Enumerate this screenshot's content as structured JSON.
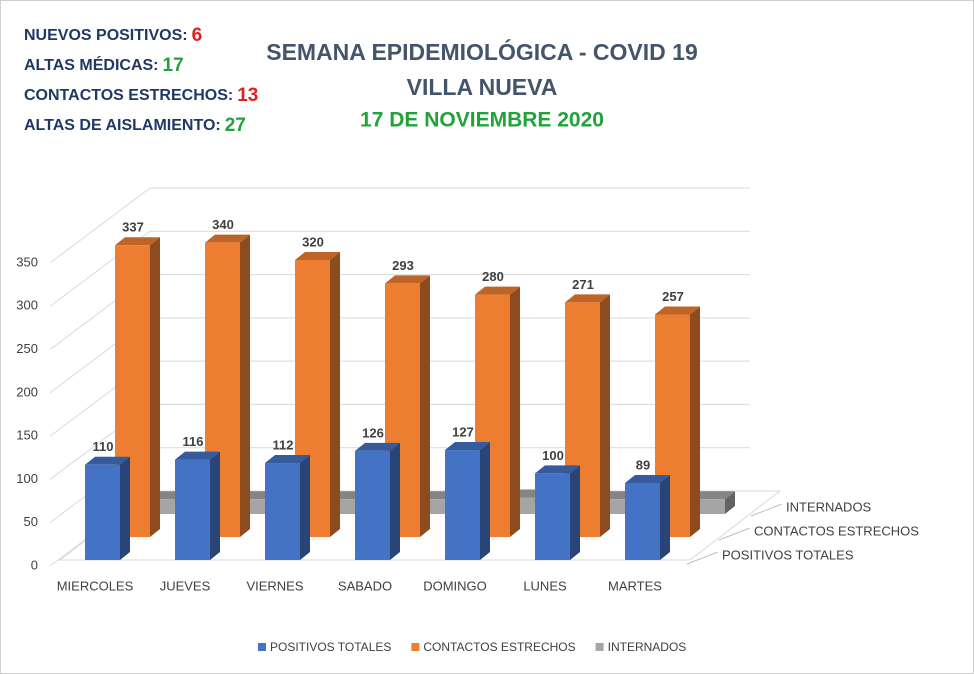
{
  "stats": [
    {
      "label": "NUEVOS POSITIVOS:",
      "value": 6,
      "color": "#e02020"
    },
    {
      "label": "ALTAS MÉDICAS:",
      "value": 17,
      "color": "#21a33a"
    },
    {
      "label": "CONTACTOS ESTRECHOS:",
      "value": 13,
      "color": "#e02020"
    },
    {
      "label": "ALTAS DE AISLAMIENTO:",
      "value": 27,
      "color": "#21a33a"
    }
  ],
  "chart_data": {
    "type": "bar3d",
    "title": "SEMANA EPIDEMIOLÓGICA - COVID 19",
    "subtitle": "VILLA NUEVA",
    "date": "17 DE NOVIEMBRE 2020",
    "categories": [
      "MIERCOLES",
      "JUEVES",
      "VIERNES",
      "SABADO",
      "DOMINGO",
      "LUNES",
      "MARTES"
    ],
    "series": [
      {
        "name": "POSITIVOS TOTALES",
        "color": "#4472c4",
        "values": [
          110,
          116,
          112,
          126,
          127,
          100,
          89
        ]
      },
      {
        "name": "CONTACTOS ESTRECHOS",
        "color": "#ed7d31",
        "values": [
          337,
          340,
          320,
          293,
          280,
          271,
          257
        ]
      },
      {
        "name": "INTERNADOS",
        "color": "#a5a5a5",
        "values": [
          17,
          17,
          17,
          17,
          19,
          17,
          17
        ]
      }
    ],
    "ylim": [
      0,
      350
    ],
    "yticks": [
      0,
      50,
      100,
      150,
      200,
      250,
      300,
      350
    ],
    "grid": true
  }
}
